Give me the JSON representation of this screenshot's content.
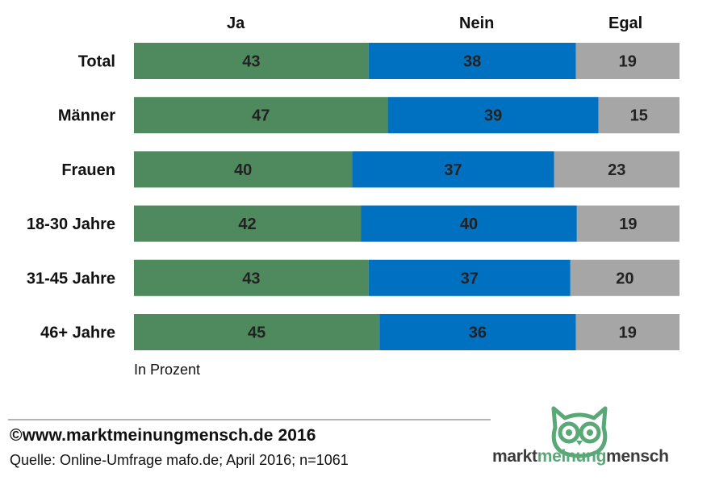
{
  "chart_data": {
    "type": "bar",
    "orientation": "horizontal",
    "stacked": true,
    "categories": [
      "Total",
      "Männer",
      "Frauen",
      "18-30 Jahre",
      "31-45 Jahre",
      "46+ Jahre"
    ],
    "series": [
      {
        "name": "Ja",
        "values": [
          43,
          47,
          40,
          42,
          43,
          45
        ],
        "color": "#4f8a5f"
      },
      {
        "name": "Nein",
        "values": [
          38,
          39,
          37,
          40,
          37,
          36
        ],
        "color": "#0070c0"
      },
      {
        "name": "Egal",
        "values": [
          19,
          15,
          23,
          19,
          20,
          19
        ],
        "color": "#a6a6a6"
      }
    ],
    "legend_position": "top",
    "grid": false,
    "note": "In Prozent"
  },
  "footer": {
    "copyright": "©www.marktmeinungmensch.de  2016",
    "source": "Quelle: Online-Umfrage mafo.de; April 2016; n=1061"
  },
  "logo": {
    "text_part1": "markt",
    "text_part2": "meinung",
    "text_part3": "mensch",
    "color_primary": "#5aa877",
    "color_text": "#3b3b3b"
  }
}
